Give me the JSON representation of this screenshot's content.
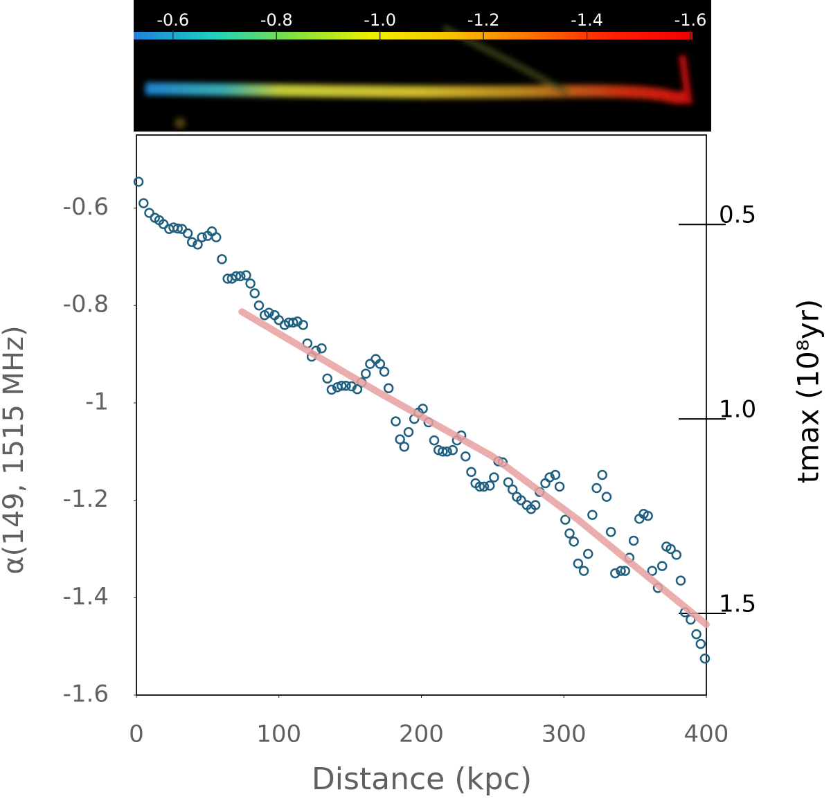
{
  "chart_data": {
    "type": "scatter",
    "xlabel": "Distance (kpc)",
    "ylabel": "α(149, 1515 MHz)",
    "y2label": "tmax (10⁸yr)",
    "xlim": [
      0,
      400
    ],
    "ylim": [
      -1.6,
      -0.45
    ],
    "xticks": [
      0,
      100,
      200,
      300,
      400
    ],
    "yticks": [
      -1.6,
      -1.4,
      -1.2,
      -1,
      -0.8,
      -0.6
    ],
    "y2lim": [
      1.71,
      0.27
    ],
    "y2ticks": [
      0.5,
      {
        "value": 1,
        "label": "1.0"
      },
      1.5
    ],
    "series": [
      {
        "style": "markers",
        "color": "#1f5f7f",
        "x": [
          1.5,
          5,
          9,
          13,
          16,
          19,
          23,
          26,
          29,
          32,
          36,
          39,
          43,
          46,
          50,
          53,
          56,
          60,
          64,
          67,
          70,
          73,
          77,
          80,
          83,
          86,
          90,
          93,
          97,
          100,
          104,
          107,
          110,
          113,
          117,
          120,
          123,
          126,
          130,
          134,
          137,
          141,
          144,
          147,
          151,
          155,
          158,
          161,
          164,
          168,
          171,
          174,
          177,
          182,
          185,
          188,
          191,
          195,
          198,
          201,
          205,
          209,
          212,
          215,
          218,
          222,
          225,
          228,
          231,
          235,
          238,
          241,
          244,
          248,
          251,
          254,
          257,
          261,
          264,
          267,
          270,
          274,
          277,
          280,
          283,
          287,
          290,
          294,
          297,
          301,
          304,
          307,
          310,
          314,
          317,
          320,
          323,
          327,
          330,
          333,
          336,
          340,
          343,
          346,
          349,
          353,
          356,
          359,
          362,
          366,
          369,
          372,
          375,
          379,
          382,
          385,
          389,
          393,
          396,
          399
        ],
        "values": [
          -0.546,
          -0.59,
          -0.61,
          -0.62,
          -0.625,
          -0.633,
          -0.643,
          -0.64,
          -0.642,
          -0.643,
          -0.652,
          -0.67,
          -0.675,
          -0.66,
          -0.657,
          -0.648,
          -0.66,
          -0.705,
          -0.745,
          -0.745,
          -0.74,
          -0.74,
          -0.738,
          -0.755,
          -0.775,
          -0.8,
          -0.82,
          -0.815,
          -0.82,
          -0.83,
          -0.84,
          -0.835,
          -0.835,
          -0.833,
          -0.84,
          -0.878,
          -0.905,
          -0.893,
          -0.888,
          -0.95,
          -0.973,
          -0.968,
          -0.965,
          -0.965,
          -0.966,
          -0.972,
          -0.958,
          -0.94,
          -0.92,
          -0.91,
          -0.92,
          -0.936,
          -0.97,
          -1.038,
          -1.075,
          -1.09,
          -1.06,
          -1.033,
          -1.02,
          -1.012,
          -1.04,
          -1.077,
          -1.097,
          -1.1,
          -1.1,
          -1.097,
          -1.077,
          -1.067,
          -1.11,
          -1.142,
          -1.165,
          -1.172,
          -1.172,
          -1.17,
          -1.153,
          -1.12,
          -1.122,
          -1.163,
          -1.178,
          -1.193,
          -1.2,
          -1.21,
          -1.218,
          -1.21,
          -1.183,
          -1.165,
          -1.153,
          -1.148,
          -1.172,
          -1.24,
          -1.268,
          -1.285,
          -1.33,
          -1.345,
          -1.31,
          -1.23,
          -1.175,
          -1.148,
          -1.193,
          -1.265,
          -1.35,
          -1.345,
          -1.345,
          -1.318,
          -1.283,
          -1.238,
          -1.228,
          -1.232,
          -1.345,
          -1.38,
          -1.335,
          -1.295,
          -1.3,
          -1.312,
          -1.365,
          -1.43,
          -1.445,
          -1.475,
          -1.495,
          -1.525
        ]
      },
      {
        "style": "line",
        "color": "#e8a0a0",
        "x": [
          74,
          169,
          250,
          310,
          400
        ],
        "values": [
          -0.813,
          -0.977,
          -1.11,
          -1.24,
          -1.455
        ]
      }
    ],
    "colorbar": {
      "lim": [
        -0.524,
        -1.604
      ],
      "ticks": [
        -0.6,
        -0.8,
        {
          "value": -1,
          "label": "-1.0"
        },
        -1.2,
        -1.4,
        -1.6
      ],
      "colors": [
        "#1f7fe0",
        "#1fd0c0",
        "#80e040",
        "#f0f000",
        "#f8c000",
        "#ff7000",
        "#ff2000",
        "#f00000"
      ]
    }
  }
}
